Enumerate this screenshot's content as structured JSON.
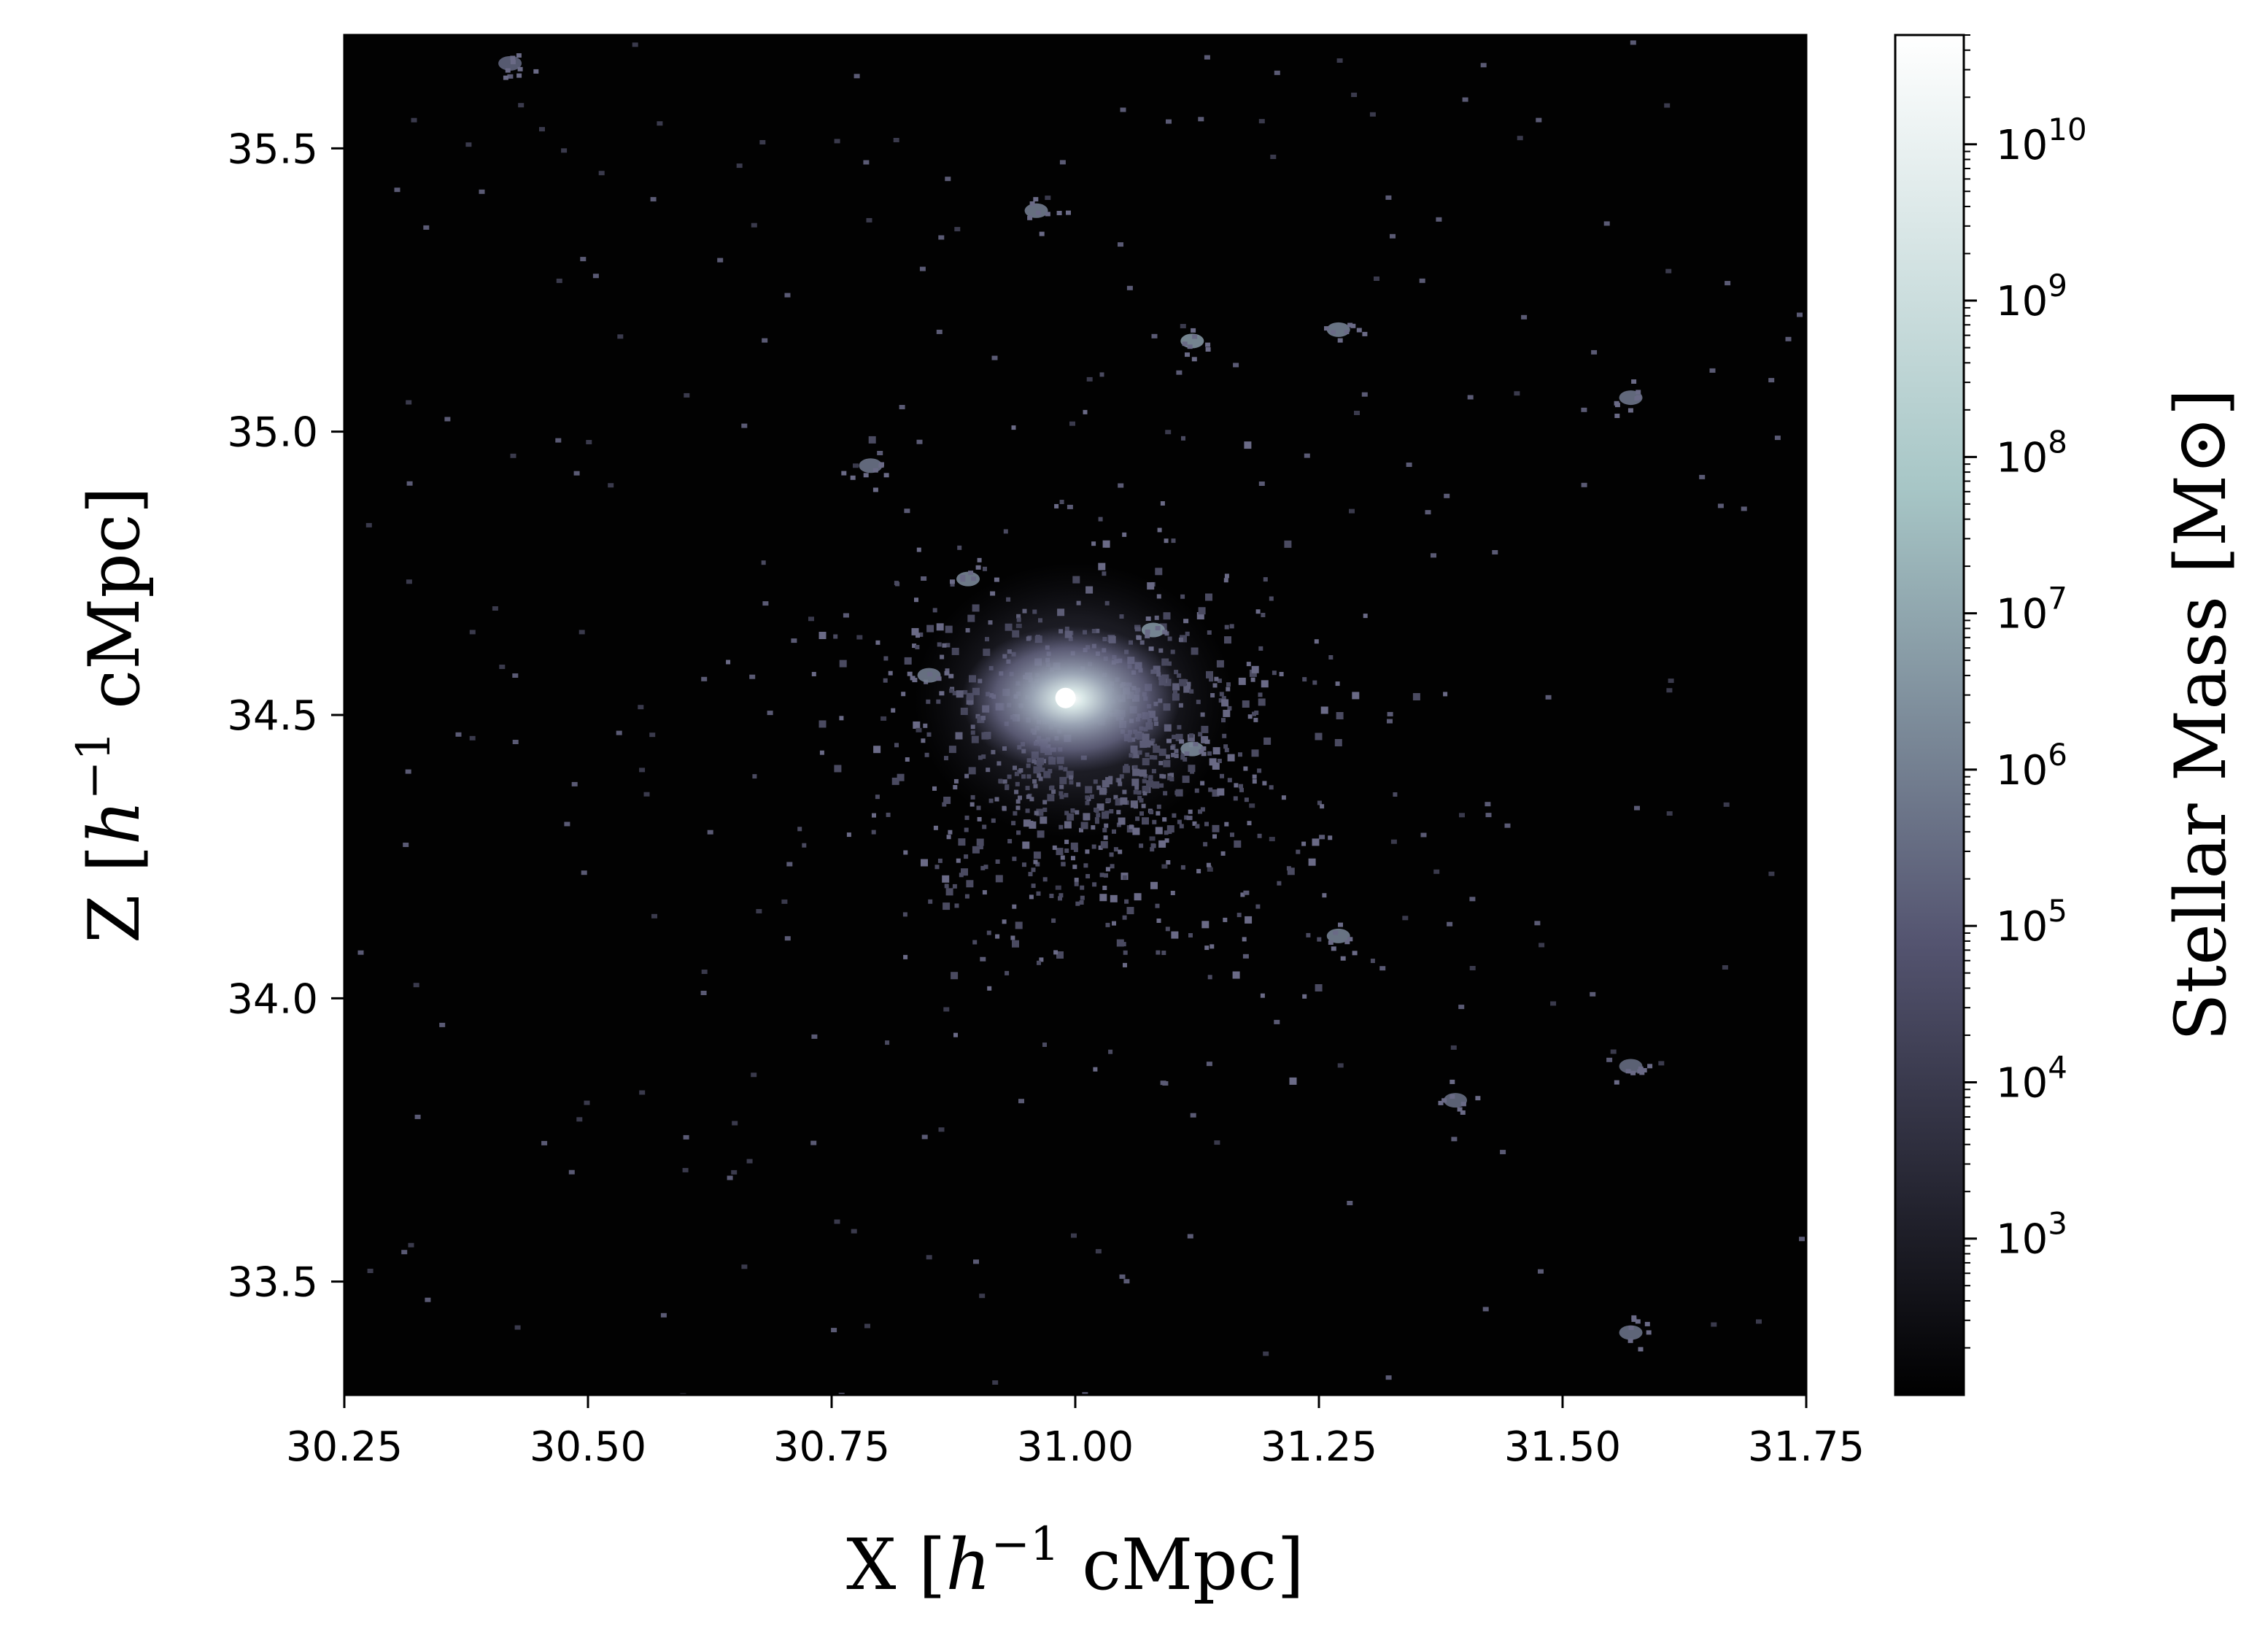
{
  "chart_data": {
    "type": "heatmap",
    "title": "",
    "xlabel": {
      "prefix": "X [",
      "h": "h",
      "sup": "−1",
      "suffix": " cMpc]"
    },
    "ylabel": {
      "prefix": "Z [",
      "h": "h",
      "sup": "−1",
      "suffix": " cMpc]"
    },
    "xlim": [
      30.25,
      31.75
    ],
    "ylim": [
      33.3,
      35.7
    ],
    "x_ticks": [
      30.25,
      30.5,
      30.75,
      31.0,
      31.25,
      31.5,
      31.75
    ],
    "x_tick_labels": [
      "30.25",
      "30.50",
      "30.75",
      "31.00",
      "31.25",
      "31.50",
      "31.75"
    ],
    "y_ticks": [
      33.5,
      34.0,
      34.5,
      35.0,
      35.5
    ],
    "y_tick_labels": [
      "33.5",
      "34.0",
      "34.5",
      "35.0",
      "35.5"
    ],
    "colorbar": {
      "label": "Stellar Mass [M⊙]",
      "scale": "log",
      "range": [
        100,
        50000000000
      ],
      "ticks": [
        {
          "value": 1000,
          "base": "10",
          "exp": "3"
        },
        {
          "value": 10000,
          "base": "10",
          "exp": "4"
        },
        {
          "value": 100000,
          "base": "10",
          "exp": "5"
        },
        {
          "value": 1000000,
          "base": "10",
          "exp": "6"
        },
        {
          "value": 10000000,
          "base": "10",
          "exp": "7"
        },
        {
          "value": 100000000,
          "base": "10",
          "exp": "8"
        },
        {
          "value": 1000000000,
          "base": "10",
          "exp": "9"
        },
        {
          "value": 10000000000,
          "base": "10",
          "exp": "10"
        }
      ],
      "colormap": "bone",
      "colors": [
        "#000000",
        "#545470",
        "#a7c6c6",
        "#ffffff"
      ]
    },
    "background_color": "#020202",
    "central_halo": {
      "x": 30.99,
      "y": 34.53,
      "peak_mass": 50000000000
    },
    "satellite_clumps": [
      {
        "x": 31.12,
        "y": 35.16,
        "mass": 3000000
      },
      {
        "x": 31.27,
        "y": 35.18,
        "mass": 1000000
      },
      {
        "x": 30.96,
        "y": 35.39,
        "mass": 800000
      },
      {
        "x": 31.08,
        "y": 34.65,
        "mass": 3000000
      },
      {
        "x": 31.12,
        "y": 34.44,
        "mass": 2000000
      },
      {
        "x": 30.89,
        "y": 34.74,
        "mass": 1500000
      },
      {
        "x": 31.27,
        "y": 34.11,
        "mass": 1000000
      },
      {
        "x": 30.79,
        "y": 34.94,
        "mass": 500000
      },
      {
        "x": 31.57,
        "y": 35.06,
        "mass": 500000
      },
      {
        "x": 31.57,
        "y": 33.41,
        "mass": 400000
      },
      {
        "x": 31.39,
        "y": 33.82,
        "mass": 300000
      },
      {
        "x": 31.57,
        "y": 33.88,
        "mass": 300000
      },
      {
        "x": 30.42,
        "y": 35.65,
        "mass": 200000
      },
      {
        "x": 30.85,
        "y": 34.57,
        "mass": 800000
      }
    ]
  }
}
